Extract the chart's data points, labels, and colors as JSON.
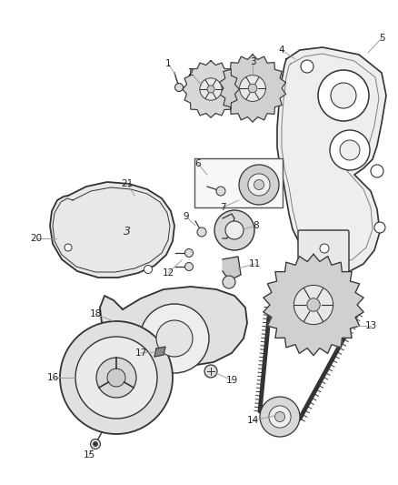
{
  "bg_color": "#ffffff",
  "line_color": "#333333",
  "label_color": "#222222",
  "leader_color": "#999999",
  "label_fontsize": 7.0,
  "figsize": [
    4.38,
    5.33
  ],
  "dpi": 100
}
